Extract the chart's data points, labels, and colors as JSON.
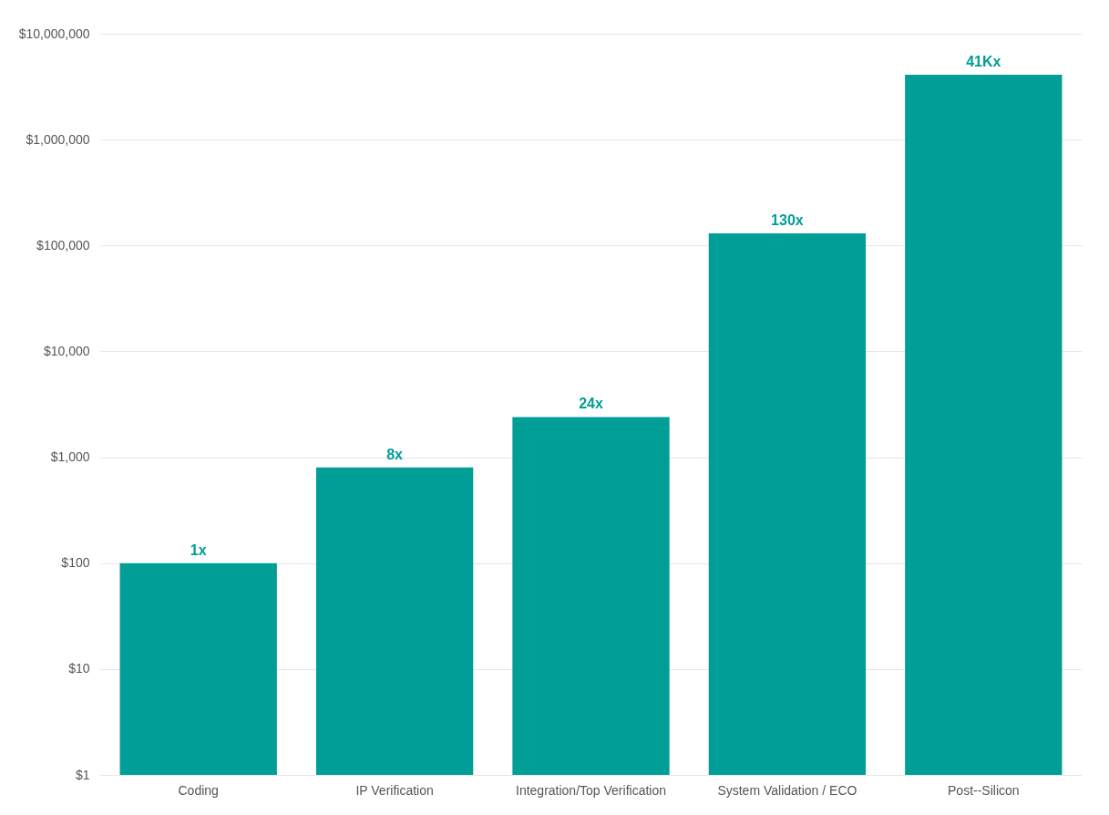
{
  "chart_data": {
    "type": "bar",
    "categories": [
      "Coding",
      "IP Verification",
      "Integration/Top Verification",
      "System Validation / ECO",
      "Post--Silicon"
    ],
    "values": [
      100,
      800,
      2400,
      130000,
      4100000
    ],
    "annotations": [
      {
        "text": "1x",
        "x": "Coding",
        "y": 100
      },
      {
        "text": "8x",
        "x": "IP Verification",
        "y": 800
      },
      {
        "text": "24x",
        "x": "Integration/Top Verification",
        "y": 2400
      },
      {
        "text": "130x",
        "x": "System Validation / ECO",
        "y": 130000
      },
      {
        "text": "41Kx",
        "x": "Post--Silicon",
        "y": 4100000
      }
    ],
    "color": "#009e96",
    "log": true,
    "ylim": [
      1,
      10000000
    ],
    "yticks": [
      {
        "value": 1,
        "label": "$1"
      },
      {
        "value": 10,
        "label": "$10"
      },
      {
        "value": 100,
        "label": "$100"
      },
      {
        "value": 1000,
        "label": "$1,000"
      },
      {
        "value": 10000,
        "label": "$10,000"
      },
      {
        "value": 100000,
        "label": "$100,000"
      },
      {
        "value": 1000000,
        "label": "$1,000,000"
      },
      {
        "value": 10000000,
        "label": "$10,000,000"
      }
    ],
    "grid": "y"
  }
}
